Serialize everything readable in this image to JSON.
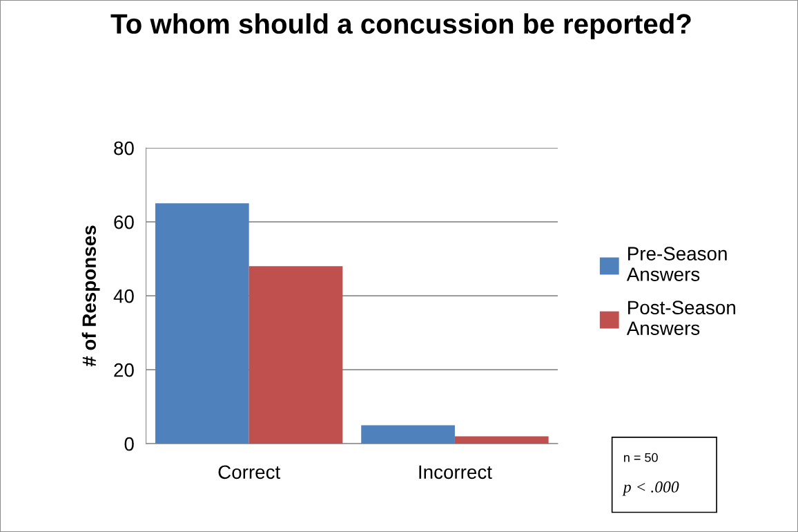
{
  "chart_data": {
    "type": "bar",
    "title": "To whom should a concussion be reported?",
    "ylabel": "# of Responses",
    "categories": [
      "Correct",
      "Incorrect"
    ],
    "series": [
      {
        "name": "Pre-Season Answers",
        "color": "#4f81bd",
        "values": [
          65,
          5
        ]
      },
      {
        "name": "Post-Season Answers",
        "color": "#c0504d",
        "values": [
          48,
          2
        ]
      }
    ],
    "ylim": [
      0,
      80
    ],
    "yticks": [
      0,
      20,
      40,
      60,
      80
    ],
    "grid": "y",
    "legend": "right",
    "annotations": [
      "n = 50",
      "p < .000"
    ]
  }
}
